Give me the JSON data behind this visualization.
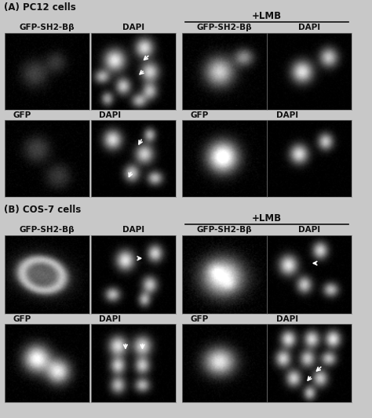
{
  "fig_width": 4.74,
  "fig_height": 5.33,
  "dpi": 100,
  "bg_color": "#c8c8c8",
  "panel_A_label": "(A) PC12 cells",
  "panel_B_label": "(B) COS-7 cells",
  "lmb_label": "+LMB",
  "text_color": "#111111",
  "label_fontsize": 8.5,
  "col_label_fontsize": 7.5,
  "sub_label_fontsize": 7.5
}
